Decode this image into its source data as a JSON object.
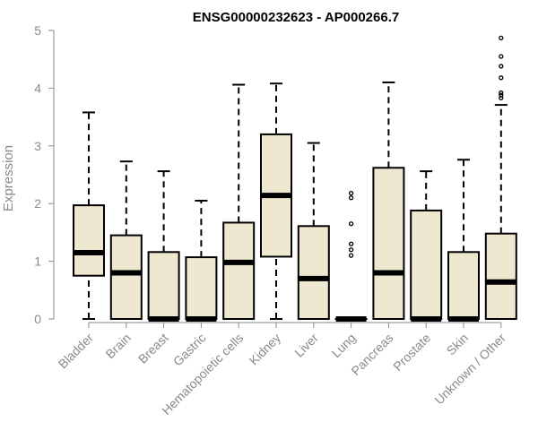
{
  "chart_data": {
    "type": "boxplot",
    "title": "ENSG00000232623 - AP000266.7",
    "xlabel": "",
    "ylabel": "Expression",
    "ylim": [
      0,
      5
    ],
    "yticks": [
      0,
      1,
      2,
      3,
      4,
      5
    ],
    "grid": false,
    "box_color": "#efe8d0",
    "categories": [
      "Bladder",
      "Brain",
      "Breast",
      "Gastric",
      "Hematopoietic cells",
      "Kidney",
      "Liver",
      "Lung",
      "Pancreas",
      "Prostate",
      "Skin",
      "Unknown / Other"
    ],
    "boxes": [
      {
        "whisker_low": 0,
        "q1": 0.75,
        "median": 1.15,
        "q3": 1.97,
        "whisker_high": 3.58,
        "outliers": []
      },
      {
        "whisker_low": 0,
        "q1": 0,
        "median": 0.8,
        "q3": 1.45,
        "whisker_high": 2.73,
        "outliers": []
      },
      {
        "whisker_low": 0,
        "q1": 0,
        "median": 0,
        "q3": 1.16,
        "whisker_high": 2.56,
        "outliers": []
      },
      {
        "whisker_low": 0,
        "q1": 0,
        "median": 0,
        "q3": 1.07,
        "whisker_high": 2.05,
        "outliers": []
      },
      {
        "whisker_low": 0,
        "q1": 0,
        "median": 0.98,
        "q3": 1.67,
        "whisker_high": 4.06,
        "outliers": []
      },
      {
        "whisker_low": 0,
        "q1": 1.08,
        "median": 2.14,
        "q3": 3.2,
        "whisker_high": 4.08,
        "outliers": []
      },
      {
        "whisker_low": 0,
        "q1": 0,
        "median": 0.7,
        "q3": 1.61,
        "whisker_high": 3.05,
        "outliers": []
      },
      {
        "whisker_low": 0,
        "q1": 0,
        "median": 0,
        "q3": 0,
        "whisker_high": 0,
        "outliers": [
          1.1,
          1.2,
          1.3,
          1.65,
          2.1,
          2.18
        ]
      },
      {
        "whisker_low": 0,
        "q1": 0,
        "median": 0.8,
        "q3": 2.62,
        "whisker_high": 4.1,
        "outliers": []
      },
      {
        "whisker_low": 0,
        "q1": 0,
        "median": 0,
        "q3": 1.88,
        "whisker_high": 2.56,
        "outliers": []
      },
      {
        "whisker_low": 0,
        "q1": 0,
        "median": 0,
        "q3": 1.16,
        "whisker_high": 2.76,
        "outliers": []
      },
      {
        "whisker_low": 0,
        "q1": 0,
        "median": 0.64,
        "q3": 1.48,
        "whisker_high": 3.71,
        "outliers": [
          3.83,
          3.88,
          3.92,
          4.18,
          4.38,
          4.55,
          4.87
        ]
      }
    ]
  }
}
